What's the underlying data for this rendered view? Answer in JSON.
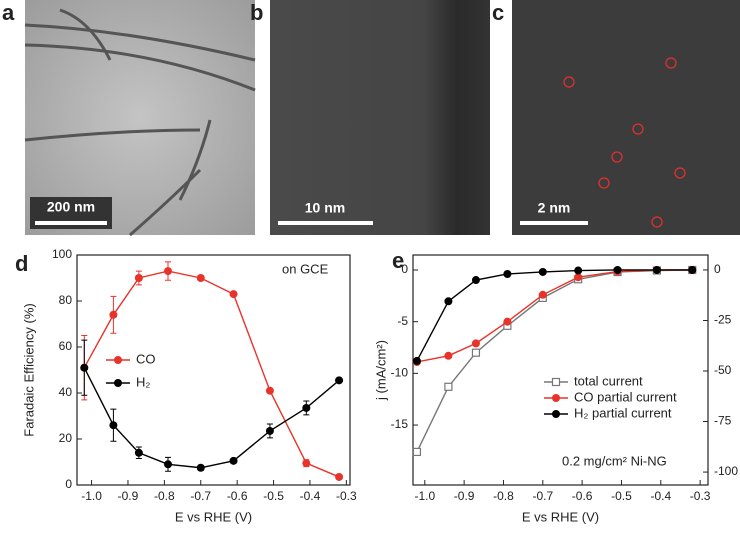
{
  "images": [
    {
      "panel": "a",
      "scale_bar": "200 nm"
    },
    {
      "panel": "b",
      "scale_bar": "10 nm"
    },
    {
      "panel": "c",
      "scale_bar": "2 nm"
    }
  ],
  "chart_data": [
    {
      "type": "line",
      "panel": "d",
      "annotation": "on GCE",
      "xlabel": "E vs RHE (V)",
      "ylabel": "Faradaic Efficiency (%)",
      "x": [
        -1.02,
        -0.94,
        -0.87,
        -0.79,
        -0.7,
        -0.61,
        -0.51,
        -0.41,
        -0.32
      ],
      "xlim": [
        -1.04,
        -0.29
      ],
      "xticks": [
        {
          "value": -1,
          "label": "-1.0"
        },
        -0.9,
        -0.8,
        -0.7,
        -0.6,
        -0.5,
        -0.4,
        -0.3
      ],
      "ylim": [
        0,
        100
      ],
      "yticks": [
        0,
        20,
        40,
        60,
        80,
        100
      ],
      "series": [
        {
          "name": "CO",
          "color": "#e8332a",
          "marker": "circle",
          "values": [
            51,
            74,
            90,
            93,
            90,
            83,
            41,
            9.5,
            3.5
          ],
          "errors": [
            14,
            8,
            3,
            4,
            1,
            null,
            null,
            1.5,
            null
          ]
        },
        {
          "name": "H₂",
          "color": "#000000",
          "marker": "circle",
          "values": [
            51,
            26,
            14,
            9,
            7.5,
            10.5,
            23.5,
            33.5,
            45.5
          ],
          "errors": [
            12,
            7,
            2.5,
            3,
            1,
            null,
            3,
            3,
            null
          ]
        }
      ]
    },
    {
      "type": "line",
      "panel": "e",
      "annotation": "0.2 mg/cm² Ni-NG",
      "xlabel": "E vs RHE (V)",
      "ylabel": "j (mA/cm²)",
      "x": [
        -1.02,
        -0.94,
        -0.87,
        -0.79,
        -0.7,
        -0.61,
        -0.51,
        -0.41,
        -0.32
      ],
      "xlim": [
        -1.03,
        -0.28
      ],
      "xticks": [
        {
          "value": -1,
          "label": "-1.0"
        },
        -0.9,
        -0.8,
        -0.7,
        -0.6,
        -0.5,
        -0.4,
        -0.3
      ],
      "ylim": [
        -20.8,
        1.45
      ],
      "yticks": [
        0,
        -5,
        -10,
        -15
      ],
      "y2lim": [
        -106.4,
        7.4
      ],
      "y2ticks": [
        0,
        -25,
        -50,
        -75,
        -100
      ],
      "series": [
        {
          "name": "total current",
          "color": "#777777",
          "marker": "square-open",
          "values": [
            -17.6,
            -11.3,
            -8.0,
            -5.4,
            -2.7,
            -0.9,
            -0.2,
            -0.05,
            0
          ]
        },
        {
          "name": "CO partial current",
          "color": "#e8332a",
          "marker": "circle",
          "values": [
            -8.9,
            -8.3,
            -7.1,
            -5.0,
            -2.4,
            -0.7,
            -0.15,
            0,
            0
          ]
        },
        {
          "name": "H₂ partial current",
          "color": "#000000",
          "marker": "circle",
          "axis": "y2",
          "values": [
            -45,
            -15.5,
            -5,
            -2,
            -1,
            -0.3,
            0,
            0,
            0
          ]
        }
      ]
    }
  ]
}
